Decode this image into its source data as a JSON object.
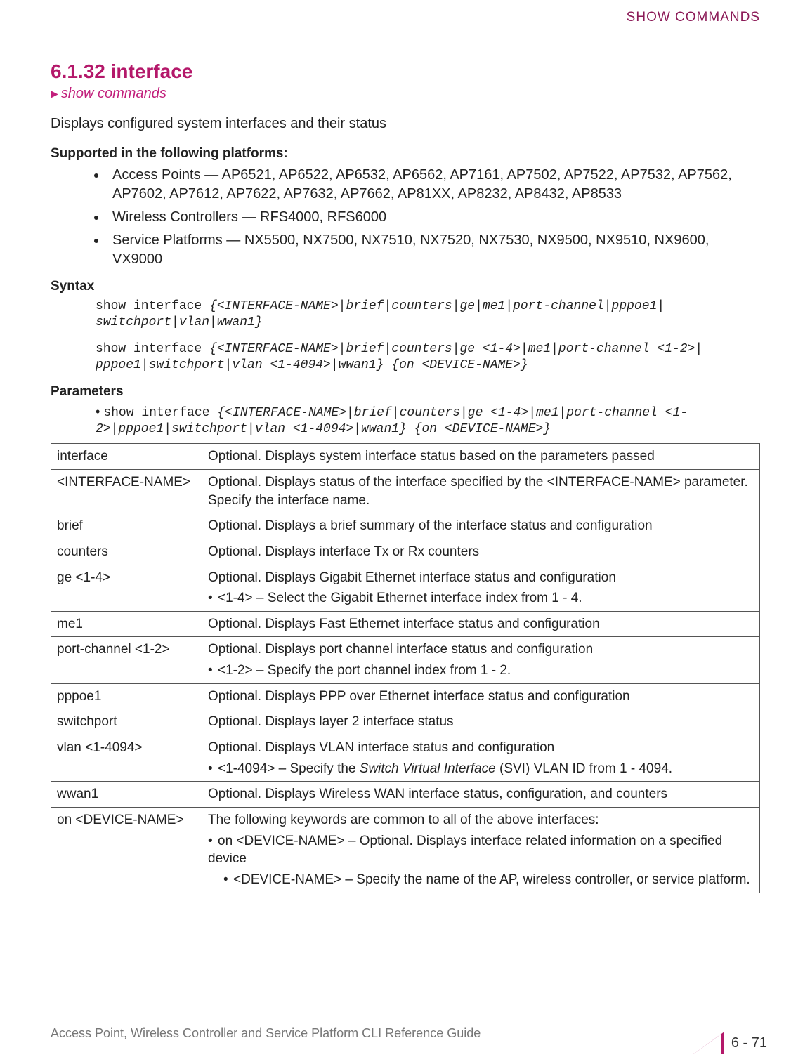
{
  "header": {
    "right": "SHOW COMMANDS"
  },
  "title": "6.1.32 interface",
  "breadcrumb": "show commands",
  "lead": "Displays configured system interfaces and their status",
  "supported": {
    "heading": "Supported in the following platforms:",
    "items": [
      "Access Points — AP6521, AP6522, AP6532, AP6562, AP7161, AP7502, AP7522, AP7532, AP7562, AP7602, AP7612, AP7622, AP7632, AP7662, AP81XX, AP8232, AP8432, AP8533",
      "Wireless Controllers — RFS4000, RFS6000",
      "Service Platforms — NX5500, NX7500, NX7510, NX7520, NX7530, NX9500, NX9510, NX9600, VX9000"
    ]
  },
  "syntax": {
    "heading": "Syntax",
    "line1_kw": "show interface ",
    "line1_arg": "{<INTERFACE-NAME>|brief|counters|ge|me1|port-channel|pppoe1| switchport|vlan|wwan1}",
    "line2_kw": "show interface ",
    "line2_arg": "{<INTERFACE-NAME>|brief|counters|ge <1-4>|me1|port-channel <1-2>| pppoe1|switchport|vlan <1-4094>|wwan1} {on <DEVICE-NAME>}"
  },
  "parameters": {
    "heading": "Parameters",
    "intro_kw": "show interface ",
    "intro_arg": "{<INTERFACE-NAME>|brief|counters|ge <1-4>|me1|port-channel <1-2>|pppoe1|switchport|vlan <1-4094>|wwan1} {on <DEVICE-NAME>}",
    "rows": [
      {
        "name": "interface",
        "desc": "Optional. Displays system interface status based on the parameters passed"
      },
      {
        "name": "<INTERFACE-NAME>",
        "desc": "Optional. Displays status of the interface specified by the <INTERFACE-NAME> parameter. Specify the interface name."
      },
      {
        "name": "brief",
        "desc": "Optional. Displays a brief summary of the interface status and configuration"
      },
      {
        "name": "counters",
        "desc": "Optional. Displays interface Tx or Rx counters"
      },
      {
        "name": "ge <1-4>",
        "desc": "Optional. Displays Gigabit Ethernet interface status and configuration",
        "sub": "<1-4> – Select the Gigabit Ethernet interface index from 1 - 4."
      },
      {
        "name": "me1",
        "desc": "Optional. Displays Fast Ethernet interface status and configuration"
      },
      {
        "name": "port-channel <1-2>",
        "desc": "Optional. Displays port channel interface status and configuration",
        "sub": "<1-2> – Specify the port channel index from 1 - 2."
      },
      {
        "name": "pppoe1",
        "desc": "Optional. Displays PPP over Ethernet interface status and configuration"
      },
      {
        "name": "switchport",
        "desc": "Optional. Displays layer 2 interface status"
      },
      {
        "name": "vlan <1-4094>",
        "desc": "Optional. Displays VLAN interface status and configuration",
        "sub_html": "<1-4094> – Specify the <span class=\"ital\">Switch Virtual Interface</span> (SVI) VLAN ID from 1 - 4094."
      },
      {
        "name": "wwan1",
        "desc": "Optional. Displays Wireless WAN interface status, configuration, and counters"
      },
      {
        "name": "on <DEVICE-NAME>",
        "desc": "The following keywords are common to all of the above interfaces:",
        "sub": "on <DEVICE-NAME> – Optional. Displays interface related information on a specified device",
        "sub2": "<DEVICE-NAME> – Specify the name of the AP, wireless controller, or service platform."
      }
    ]
  },
  "footer": {
    "left": "Access Point, Wireless Controller and Service Platform CLI Reference Guide",
    "page": "6 - 71"
  },
  "colors": {
    "accent": "#b4186a",
    "header": "#8b1a57"
  }
}
